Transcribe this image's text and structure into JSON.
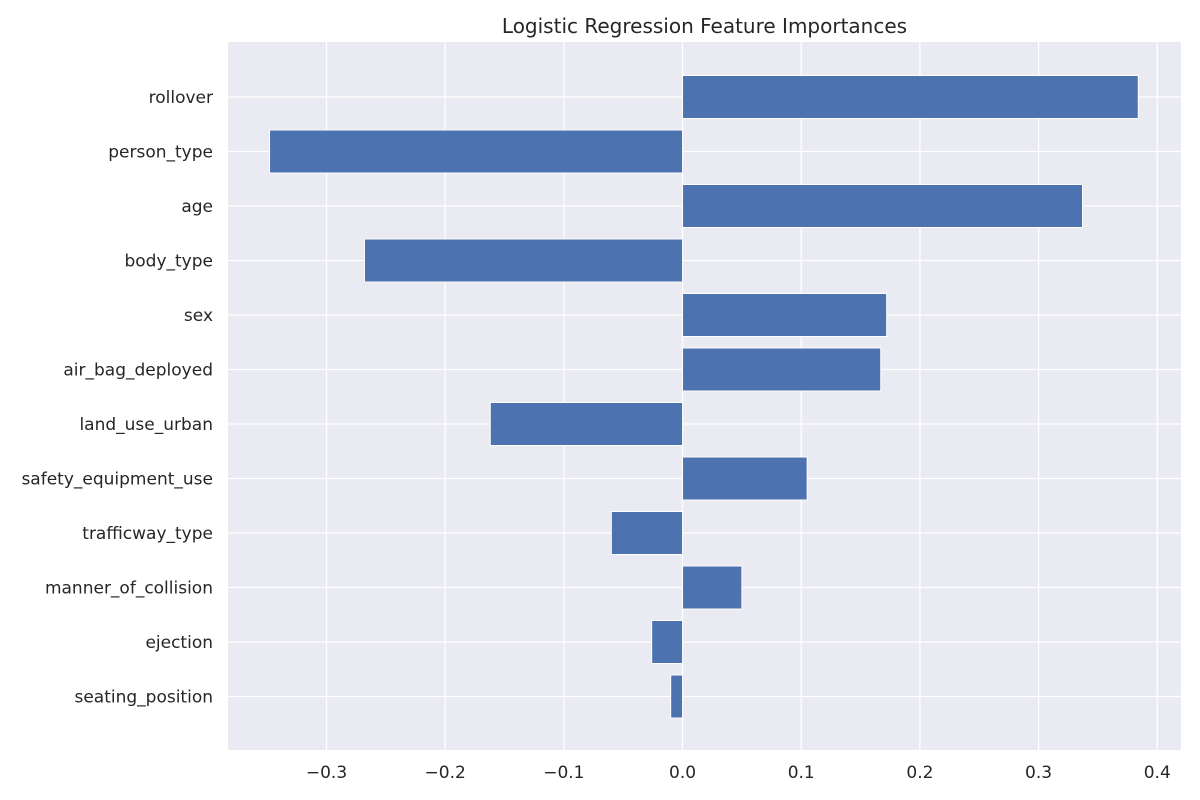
{
  "chart_data": {
    "type": "bar",
    "orientation": "horizontal",
    "title": "Logistic Regression Feature Importances",
    "xlabel": "",
    "ylabel": "",
    "xlim": [
      -0.383,
      0.42
    ],
    "grid": true,
    "x_ticks": [
      -0.3,
      -0.2,
      -0.1,
      0.0,
      0.1,
      0.2,
      0.3,
      0.4
    ],
    "x_tick_labels": [
      "−0.3",
      "−0.2",
      "−0.1",
      "0.0",
      "0.1",
      "0.2",
      "0.3",
      "0.4"
    ],
    "categories": [
      "rollover",
      "person_type",
      "age",
      "body_type",
      "sex",
      "air_bag_deployed",
      "land_use_urban",
      "safety_equipment_use",
      "trafficway_type",
      "manner_of_collision",
      "ejection",
      "seating_position"
    ],
    "values": [
      0.384,
      -0.348,
      0.337,
      -0.268,
      0.172,
      0.167,
      -0.162,
      0.105,
      -0.06,
      0.05,
      -0.026,
      -0.01
    ],
    "colors": {
      "bar": "#4c72b0",
      "plot_background": "#eaeaf2",
      "grid": "#ffffff",
      "text": "#262626"
    }
  }
}
